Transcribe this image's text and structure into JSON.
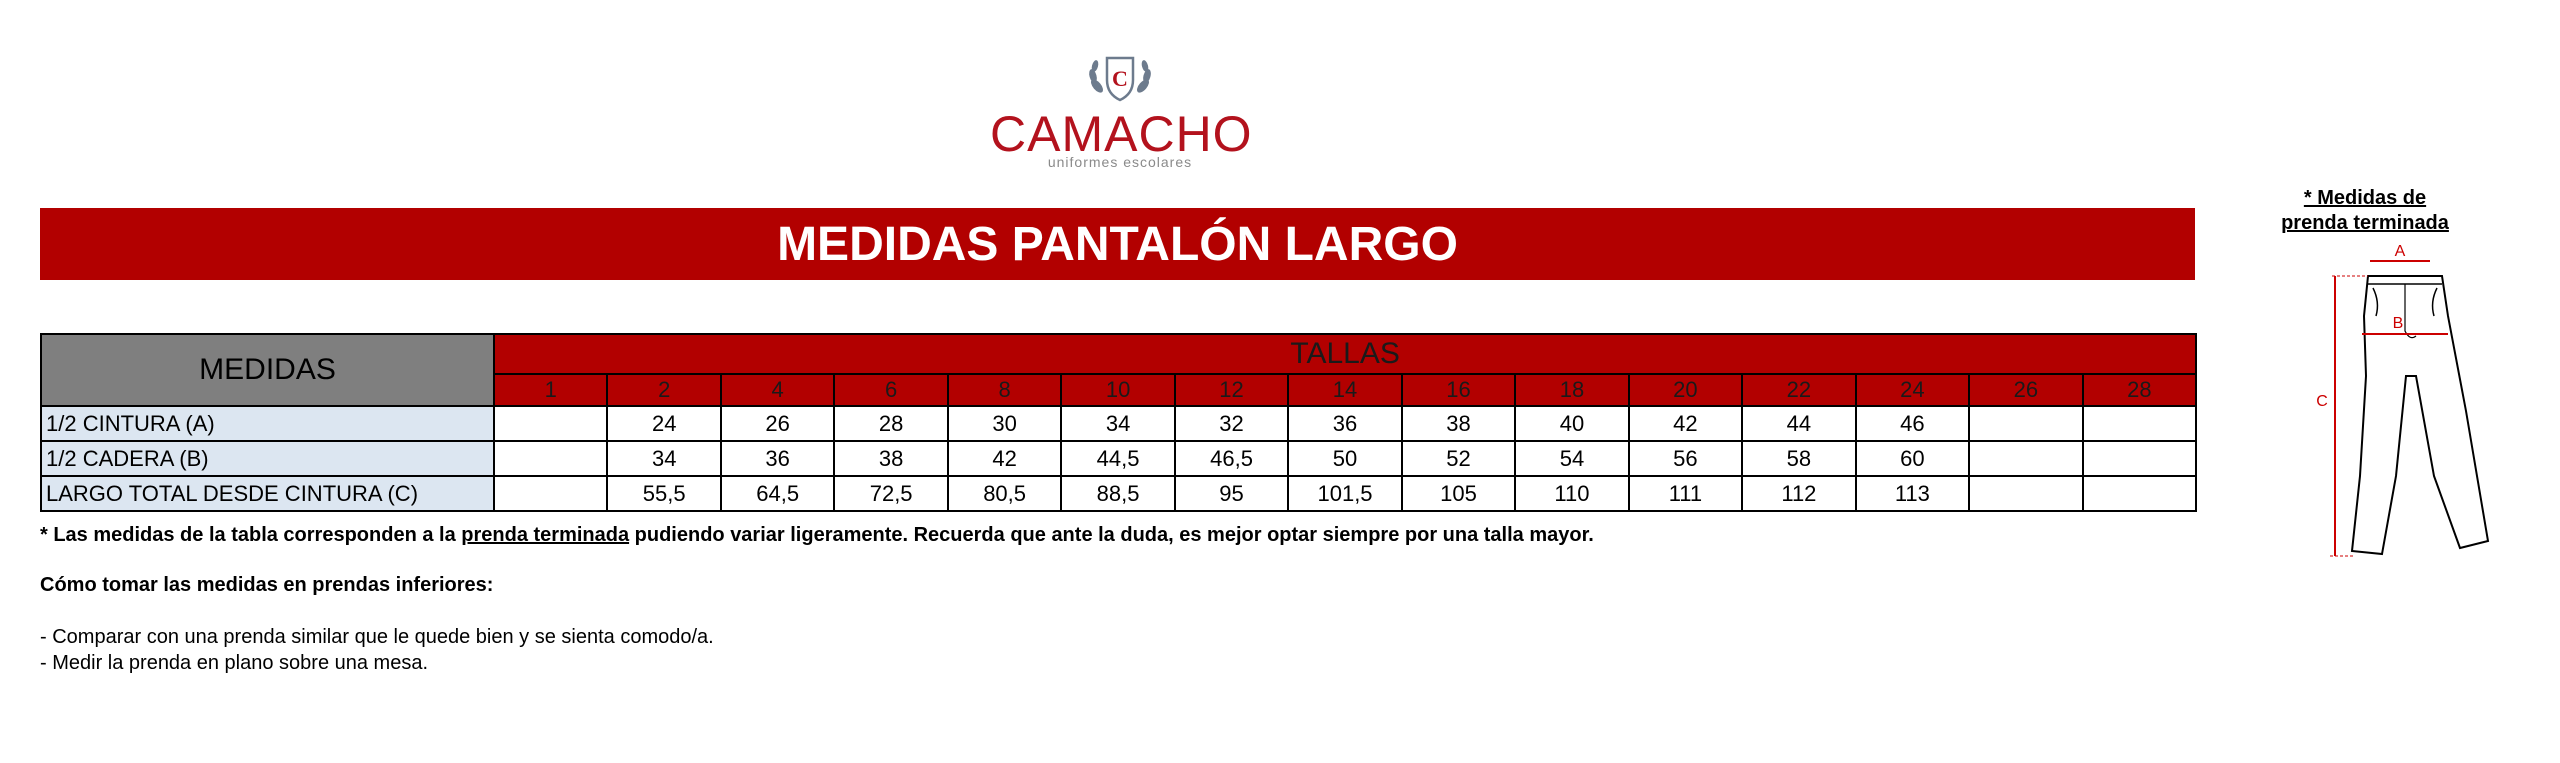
{
  "logo": {
    "emblem_letter": "C",
    "wordmark": "CAMACHO",
    "tagline": "uniformes escolares",
    "color": "#b3121d"
  },
  "title": "MEDIDAS PANTALÓN LARGO",
  "table": {
    "measure_header": "MEDIDAS",
    "sizes_header": "TALLAS",
    "sizes": [
      "1",
      "2",
      "4",
      "6",
      "8",
      "10",
      "12",
      "14",
      "16",
      "18",
      "20",
      "22",
      "24",
      "26",
      "28"
    ],
    "rows": [
      {
        "label": "1/2 CINTURA (A)",
        "values": [
          "",
          "24",
          "26",
          "28",
          "30",
          "34",
          "32",
          "36",
          "38",
          "40",
          "42",
          "44",
          "46",
          "",
          ""
        ]
      },
      {
        "label": "1/2 CADERA (B)",
        "values": [
          "",
          "34",
          "36",
          "38",
          "42",
          "44,5",
          "46,5",
          "50",
          "52",
          "54",
          "56",
          "58",
          "60",
          "",
          ""
        ]
      },
      {
        "label": "LARGO TOTAL DESDE CINTURA (C)",
        "values": [
          "",
          "55,5",
          "64,5",
          "72,5",
          "80,5",
          "88,5",
          "95",
          "101,5",
          "105",
          "110",
          "111",
          "112",
          "113",
          "",
          ""
        ]
      }
    ]
  },
  "notes": {
    "line1_pre": "* Las medidas de la tabla corresponden a la ",
    "line1_link": "prenda terminada",
    "line1_post": " pudiendo variar ligeramente. Recuerda que ante la duda, es mejor optar siempre por una talla mayor.",
    "how_to_title": "Cómo tomar las medidas en prendas inferiores:",
    "tip1": "- Comparar con una prenda similar que le quede bien y se sienta comodo/a.",
    "tip2": "- Medir la prenda en plano sobre una mesa."
  },
  "diagram": {
    "title_line1": "* Medidas de",
    "title_line2": "prenda terminada",
    "label_a": "A",
    "label_b": "B",
    "label_c": "C"
  },
  "colors": {
    "brand_red": "#b20000",
    "header_gray": "#7f7f7f",
    "label_blue": "#dce6f1"
  }
}
